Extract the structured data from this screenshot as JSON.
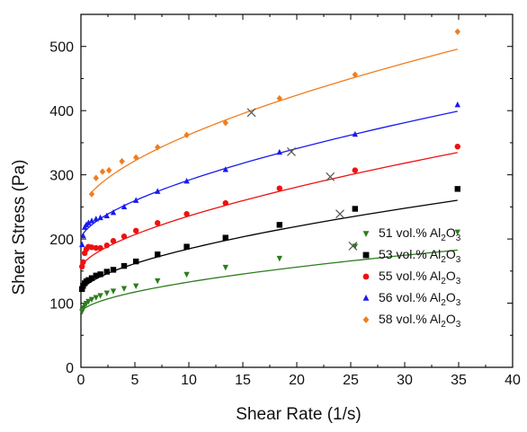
{
  "chart_data": {
    "type": "scatter",
    "xlabel": "Shear Rate (1/s)",
    "ylabel": "Shear Stress (Pa)",
    "xlim": [
      0,
      40
    ],
    "ylim": [
      0,
      550
    ],
    "xticks": [
      0,
      5,
      10,
      15,
      20,
      25,
      30,
      35,
      40
    ],
    "yticks": [
      0,
      100,
      200,
      300,
      400,
      500
    ],
    "grid": false,
    "legend_position": "bottom-right",
    "series": [
      {
        "name": "51 vol.% Al2O3",
        "label_main": "51 vol.% Al",
        "label_sub1": "2",
        "label_mid": "O",
        "label_sub2": "3",
        "color": "#2e7d1e",
        "marker": "triangle-down",
        "x": [
          0.1,
          0.2,
          0.35,
          0.5,
          0.7,
          1.0,
          1.4,
          1.8,
          2.4,
          3.0,
          4.0,
          5.1,
          7.1,
          9.8,
          13.4,
          18.4,
          25.4,
          34.9
        ],
        "y": [
          87,
          93,
          97,
          100,
          103,
          106,
          109,
          112,
          116,
          119,
          123,
          127,
          135,
          145,
          156,
          170,
          189,
          211
        ],
        "fit": {
          "a": 85,
          "b": 12.9,
          "n": 0.57
        },
        "cross": {
          "x": 25.2,
          "y": 189
        }
      },
      {
        "name": "53 vol.% Al2O3",
        "label_main": "53 vol.% Al",
        "label_sub1": "2",
        "label_mid": "O",
        "label_sub2": "3",
        "color": "#000000",
        "marker": "square",
        "x": [
          0.1,
          0.2,
          0.35,
          0.5,
          0.7,
          1.0,
          1.4,
          1.8,
          2.4,
          3.0,
          4.0,
          5.1,
          7.1,
          9.8,
          13.4,
          18.4,
          25.4,
          34.9
        ],
        "y": [
          122,
          127,
          131,
          134,
          136,
          139,
          143,
          145,
          149,
          152,
          158,
          165,
          176,
          188,
          202,
          222,
          247,
          278
        ],
        "fit": {
          "a": 117,
          "b": 17,
          "n": 0.6
        },
        "cross": {
          "x": 24.0,
          "y": 239
        }
      },
      {
        "name": "55 vol.% Al2O3",
        "label_main": "55 vol.% Al",
        "label_sub1": "2",
        "label_mid": "O",
        "label_sub2": "3",
        "color": "#ee1111",
        "marker": "circle",
        "x": [
          0.1,
          0.2,
          0.35,
          0.5,
          0.7,
          1.0,
          1.4,
          1.8,
          2.4,
          3.0,
          4.0,
          5.1,
          7.1,
          9.8,
          13.4,
          18.4,
          25.4,
          34.9
        ],
        "y": [
          157,
          164,
          178,
          184,
          188,
          187,
          186,
          186,
          190,
          197,
          204,
          213,
          225,
          239,
          256,
          279,
          307,
          344
        ],
        "fit": {
          "a": 155,
          "b": 18.5,
          "n": 0.64
        },
        "cross": {
          "x": 23.1,
          "y": 297
        }
      },
      {
        "name": "56 vol.% Al2O3",
        "label_main": "56 vol.% Al",
        "label_sub1": "2",
        "label_mid": "O",
        "label_sub2": "3",
        "color": "#1a1aee",
        "marker": "triangle-up",
        "x": [
          0.1,
          0.2,
          0.35,
          0.5,
          0.7,
          1.0,
          1.4,
          1.8,
          2.4,
          3.0,
          4.0,
          5.1,
          7.1,
          9.8,
          13.4,
          18.4,
          25.4,
          34.9
        ],
        "y": [
          191,
          205,
          218,
          222,
          225,
          228,
          231,
          233,
          236,
          241,
          250,
          260,
          274,
          290,
          308,
          335,
          363,
          409
        ],
        "fit": {
          "a": 200,
          "b": 22,
          "n": 0.62
        },
        "cross": {
          "x": 19.5,
          "y": 336
        }
      },
      {
        "name": "58 vol.% Al2O3",
        "label_main": "58 vol.% Al",
        "label_sub1": "2",
        "label_mid": "O",
        "label_sub2": "3",
        "color": "#f07d1e",
        "marker": "diamond",
        "x": [
          1.0,
          1.4,
          2.0,
          2.6,
          3.8,
          5.1,
          7.1,
          9.8,
          13.4,
          18.4,
          25.4,
          34.9
        ],
        "y": [
          270,
          295,
          305,
          307,
          321,
          327,
          343,
          362,
          381,
          419,
          456,
          523
        ],
        "fit": {
          "a": 243,
          "b": 30,
          "n": 0.6
        },
        "cross": {
          "x": 15.8,
          "y": 397
        }
      }
    ]
  }
}
